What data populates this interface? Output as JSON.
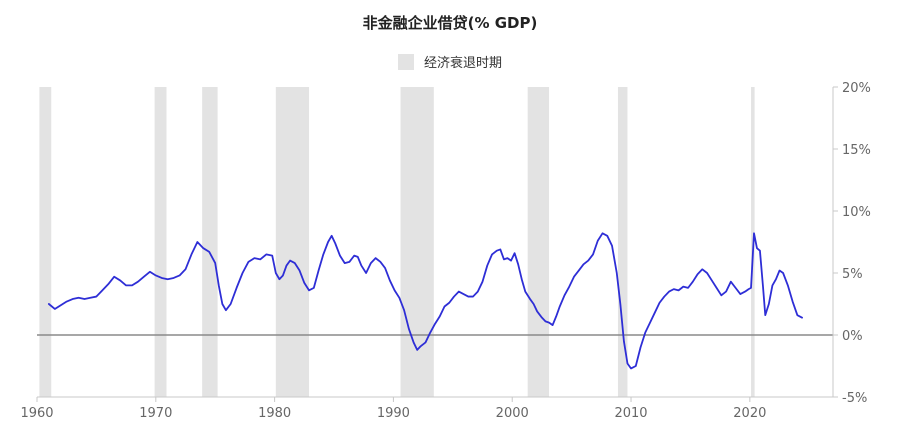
{
  "chart_data": {
    "type": "line",
    "title": "非金融企业借贷(% GDP)",
    "xlabel": "",
    "ylabel": "",
    "xlim": [
      1960,
      2027
    ],
    "ylim": [
      -5,
      20
    ],
    "x_ticks": [
      {
        "value": 1960,
        "label": "1960"
      },
      {
        "value": 1970,
        "label": "1970"
      },
      {
        "value": 1980,
        "label": "1980"
      },
      {
        "value": 1990,
        "label": "1990"
      },
      {
        "value": 2000,
        "label": "2000"
      },
      {
        "value": 2010,
        "label": "2010"
      },
      {
        "value": 2020,
        "label": "2020"
      }
    ],
    "y_ticks": [
      {
        "value": 20,
        "label": "20%"
      },
      {
        "value": 15,
        "label": "15%"
      },
      {
        "value": 10,
        "label": "10%"
      },
      {
        "value": 5,
        "label": "5%"
      },
      {
        "value": 0,
        "label": "0%"
      },
      {
        "value": -5,
        "label": "-5%"
      }
    ],
    "y_axis_position": "right",
    "grid": false,
    "zero_line": true,
    "legend": {
      "position": "top-center",
      "entries": [
        {
          "label": "经济衰退时期",
          "color": "#e3e3e3"
        }
      ]
    },
    "recessions": [
      [
        1960.2,
        1961.2
      ],
      [
        1969.9,
        1970.9
      ],
      [
        1973.9,
        1975.2
      ],
      [
        1980.1,
        1982.9
      ],
      [
        1990.6,
        1993.4
      ],
      [
        2001.3,
        2003.1
      ],
      [
        2008.9,
        2009.7
      ],
      [
        2020.1,
        2020.4
      ]
    ],
    "series": [
      {
        "name": "",
        "color": "#2e2ed6",
        "points": [
          [
            1961.0,
            2.5
          ],
          [
            1961.5,
            2.1
          ],
          [
            1962.0,
            2.4
          ],
          [
            1962.5,
            2.7
          ],
          [
            1963.0,
            2.9
          ],
          [
            1963.5,
            3.0
          ],
          [
            1964.0,
            2.9
          ],
          [
            1964.5,
            3.0
          ],
          [
            1965.0,
            3.1
          ],
          [
            1965.5,
            3.6
          ],
          [
            1966.0,
            4.1
          ],
          [
            1966.5,
            4.7
          ],
          [
            1967.0,
            4.4
          ],
          [
            1967.5,
            4.0
          ],
          [
            1968.0,
            4.0
          ],
          [
            1968.5,
            4.3
          ],
          [
            1969.0,
            4.7
          ],
          [
            1969.5,
            5.1
          ],
          [
            1970.0,
            4.8
          ],
          [
            1970.5,
            4.6
          ],
          [
            1971.0,
            4.5
          ],
          [
            1971.5,
            4.6
          ],
          [
            1972.0,
            4.8
          ],
          [
            1972.5,
            5.3
          ],
          [
            1973.0,
            6.5
          ],
          [
            1973.5,
            7.5
          ],
          [
            1974.0,
            7.0
          ],
          [
            1974.5,
            6.7
          ],
          [
            1975.0,
            5.8
          ],
          [
            1975.3,
            4.0
          ],
          [
            1975.6,
            2.5
          ],
          [
            1975.9,
            2.0
          ],
          [
            1976.3,
            2.5
          ],
          [
            1976.8,
            3.8
          ],
          [
            1977.3,
            5.0
          ],
          [
            1977.8,
            5.9
          ],
          [
            1978.3,
            6.2
          ],
          [
            1978.8,
            6.1
          ],
          [
            1979.3,
            6.5
          ],
          [
            1979.8,
            6.4
          ],
          [
            1980.1,
            5.0
          ],
          [
            1980.4,
            4.5
          ],
          [
            1980.7,
            4.8
          ],
          [
            1981.0,
            5.6
          ],
          [
            1981.3,
            6.0
          ],
          [
            1981.7,
            5.8
          ],
          [
            1982.1,
            5.2
          ],
          [
            1982.5,
            4.2
          ],
          [
            1982.9,
            3.6
          ],
          [
            1983.3,
            3.8
          ],
          [
            1983.7,
            5.2
          ],
          [
            1984.1,
            6.5
          ],
          [
            1984.5,
            7.5
          ],
          [
            1984.8,
            8.0
          ],
          [
            1985.1,
            7.4
          ],
          [
            1985.5,
            6.4
          ],
          [
            1985.9,
            5.8
          ],
          [
            1986.3,
            5.9
          ],
          [
            1986.7,
            6.4
          ],
          [
            1987.0,
            6.3
          ],
          [
            1987.3,
            5.6
          ],
          [
            1987.7,
            5.0
          ],
          [
            1988.1,
            5.8
          ],
          [
            1988.5,
            6.2
          ],
          [
            1988.9,
            5.9
          ],
          [
            1989.3,
            5.4
          ],
          [
            1989.7,
            4.4
          ],
          [
            1990.1,
            3.6
          ],
          [
            1990.5,
            3.0
          ],
          [
            1990.9,
            2.0
          ],
          [
            1991.3,
            0.5
          ],
          [
            1991.7,
            -0.6
          ],
          [
            1992.0,
            -1.2
          ],
          [
            1992.3,
            -0.9
          ],
          [
            1992.7,
            -0.6
          ],
          [
            1993.1,
            0.2
          ],
          [
            1993.5,
            0.9
          ],
          [
            1993.9,
            1.5
          ],
          [
            1994.3,
            2.3
          ],
          [
            1994.7,
            2.6
          ],
          [
            1995.1,
            3.1
          ],
          [
            1995.5,
            3.5
          ],
          [
            1995.9,
            3.3
          ],
          [
            1996.3,
            3.1
          ],
          [
            1996.7,
            3.1
          ],
          [
            1997.1,
            3.5
          ],
          [
            1997.5,
            4.3
          ],
          [
            1997.9,
            5.6
          ],
          [
            1998.3,
            6.5
          ],
          [
            1998.7,
            6.8
          ],
          [
            1999.0,
            6.9
          ],
          [
            1999.3,
            6.1
          ],
          [
            1999.6,
            6.2
          ],
          [
            1999.9,
            6.0
          ],
          [
            2000.2,
            6.6
          ],
          [
            2000.5,
            5.7
          ],
          [
            2000.8,
            4.5
          ],
          [
            2001.1,
            3.5
          ],
          [
            2001.5,
            2.9
          ],
          [
            2001.8,
            2.5
          ],
          [
            2002.1,
            1.9
          ],
          [
            2002.5,
            1.4
          ],
          [
            2002.8,
            1.1
          ],
          [
            2003.1,
            1.0
          ],
          [
            2003.4,
            0.8
          ],
          [
            2003.7,
            1.5
          ],
          [
            2004.0,
            2.3
          ],
          [
            2004.4,
            3.2
          ],
          [
            2004.8,
            3.9
          ],
          [
            2005.2,
            4.7
          ],
          [
            2005.6,
            5.2
          ],
          [
            2006.0,
            5.7
          ],
          [
            2006.4,
            6.0
          ],
          [
            2006.8,
            6.5
          ],
          [
            2007.2,
            7.6
          ],
          [
            2007.6,
            8.2
          ],
          [
            2008.0,
            8.0
          ],
          [
            2008.4,
            7.2
          ],
          [
            2008.8,
            5.0
          ],
          [
            2009.1,
            2.5
          ],
          [
            2009.4,
            -0.5
          ],
          [
            2009.7,
            -2.3
          ],
          [
            2010.0,
            -2.7
          ],
          [
            2010.4,
            -2.5
          ],
          [
            2010.8,
            -1.0
          ],
          [
            2011.2,
            0.2
          ],
          [
            2011.6,
            1.0
          ],
          [
            2012.0,
            1.8
          ],
          [
            2012.4,
            2.6
          ],
          [
            2012.8,
            3.1
          ],
          [
            2013.2,
            3.5
          ],
          [
            2013.6,
            3.7
          ],
          [
            2014.0,
            3.6
          ],
          [
            2014.4,
            3.9
          ],
          [
            2014.8,
            3.8
          ],
          [
            2015.2,
            4.3
          ],
          [
            2015.6,
            4.9
          ],
          [
            2016.0,
            5.3
          ],
          [
            2016.4,
            5.0
          ],
          [
            2016.8,
            4.4
          ],
          [
            2017.2,
            3.8
          ],
          [
            2017.6,
            3.2
          ],
          [
            2018.0,
            3.5
          ],
          [
            2018.4,
            4.3
          ],
          [
            2018.8,
            3.8
          ],
          [
            2019.2,
            3.3
          ],
          [
            2019.6,
            3.5
          ],
          [
            2019.9,
            3.7
          ],
          [
            2020.1,
            3.8
          ],
          [
            2020.35,
            8.2
          ],
          [
            2020.6,
            7.0
          ],
          [
            2020.85,
            6.8
          ],
          [
            2021.1,
            4.0
          ],
          [
            2021.3,
            1.6
          ],
          [
            2021.6,
            2.5
          ],
          [
            2021.9,
            4.0
          ],
          [
            2022.2,
            4.5
          ],
          [
            2022.5,
            5.2
          ],
          [
            2022.8,
            5.0
          ],
          [
            2023.2,
            4.0
          ],
          [
            2023.6,
            2.7
          ],
          [
            2024.0,
            1.6
          ],
          [
            2024.4,
            1.4
          ]
        ]
      }
    ]
  }
}
